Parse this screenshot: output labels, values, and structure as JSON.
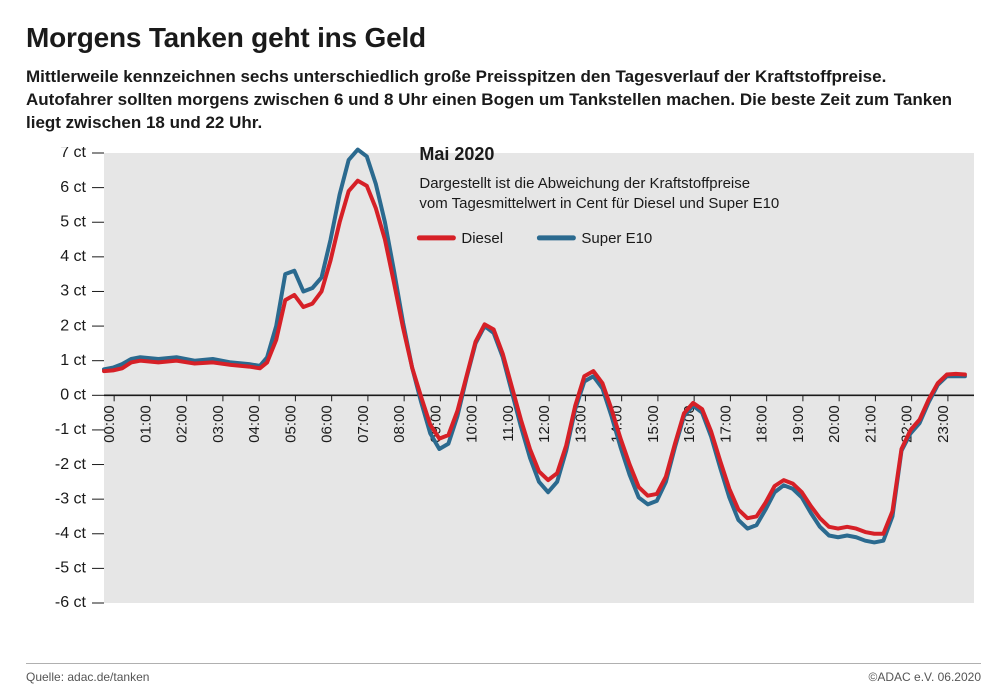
{
  "title": "Morgens Tanken geht ins Geld",
  "subtitle": "Mittlerweile kennzeichnen sechs unterschiedlich große Preisspitzen den Tagesverlauf der Kraftstoffpreise. Autofahrer sollten morgens zwischen 6 und 8 Uhr einen Bogen um Tankstellen machen. Die beste Zeit zum Tanken liegt zwischen 18 und 22 Uhr.",
  "footer_left": "Quelle: adac.de/tanken",
  "footer_right": "©ADAC e.V.  06.2020",
  "chart": {
    "type": "line",
    "plot_background": "#e6e6e6",
    "axis_color": "#1a1a1a",
    "ylim": [
      -6,
      7
    ],
    "yticks": [
      -6,
      -5,
      -4,
      -3,
      -2,
      -1,
      0,
      1,
      2,
      3,
      4,
      5,
      6,
      7
    ],
    "ytick_suffix": " ct",
    "xlim": [
      0,
      24
    ],
    "xticks_hours": [
      0,
      1,
      2,
      3,
      4,
      5,
      6,
      7,
      8,
      9,
      10,
      11,
      12,
      13,
      14,
      15,
      16,
      17,
      18,
      19,
      20,
      21,
      22,
      23
    ],
    "legend": {
      "title": "Mai 2020",
      "description_line1": "Dargestellt ist die Abweichung der Kraftstoffpreise",
      "description_line2": "vom Tagesmittelwert in Cent für Diesel und Super E10",
      "items": [
        {
          "name": "Diesel",
          "color": "#d62027"
        },
        {
          "name": "Super E10",
          "color": "#2b6a8f"
        }
      ]
    },
    "series": [
      {
        "name": "Super E10",
        "color": "#2b6a8f",
        "stroke_width": 4,
        "points": [
          [
            0.0,
            0.75
          ],
          [
            0.25,
            0.8
          ],
          [
            0.5,
            0.9
          ],
          [
            0.75,
            1.05
          ],
          [
            1.0,
            1.1
          ],
          [
            1.5,
            1.05
          ],
          [
            2.0,
            1.1
          ],
          [
            2.5,
            1.0
          ],
          [
            3.0,
            1.05
          ],
          [
            3.5,
            0.95
          ],
          [
            4.0,
            0.9
          ],
          [
            4.3,
            0.85
          ],
          [
            4.5,
            1.1
          ],
          [
            4.75,
            2.0
          ],
          [
            5.0,
            3.5
          ],
          [
            5.25,
            3.6
          ],
          [
            5.5,
            3.0
          ],
          [
            5.75,
            3.1
          ],
          [
            6.0,
            3.4
          ],
          [
            6.25,
            4.5
          ],
          [
            6.5,
            5.8
          ],
          [
            6.75,
            6.8
          ],
          [
            7.0,
            7.1
          ],
          [
            7.25,
            6.9
          ],
          [
            7.5,
            6.1
          ],
          [
            7.75,
            5.0
          ],
          [
            8.0,
            3.6
          ],
          [
            8.25,
            2.1
          ],
          [
            8.5,
            0.8
          ],
          [
            8.75,
            -0.2
          ],
          [
            9.0,
            -1.1
          ],
          [
            9.25,
            -1.55
          ],
          [
            9.5,
            -1.4
          ],
          [
            9.75,
            -0.6
          ],
          [
            10.0,
            0.5
          ],
          [
            10.25,
            1.5
          ],
          [
            10.5,
            2.0
          ],
          [
            10.75,
            1.8
          ],
          [
            11.0,
            1.1
          ],
          [
            11.25,
            0.1
          ],
          [
            11.5,
            -0.9
          ],
          [
            11.75,
            -1.8
          ],
          [
            12.0,
            -2.5
          ],
          [
            12.25,
            -2.8
          ],
          [
            12.5,
            -2.5
          ],
          [
            12.75,
            -1.6
          ],
          [
            13.0,
            -0.4
          ],
          [
            13.25,
            0.4
          ],
          [
            13.5,
            0.55
          ],
          [
            13.75,
            0.2
          ],
          [
            14.0,
            -0.6
          ],
          [
            14.25,
            -1.5
          ],
          [
            14.5,
            -2.3
          ],
          [
            14.75,
            -2.95
          ],
          [
            15.0,
            -3.15
          ],
          [
            15.25,
            -3.05
          ],
          [
            15.5,
            -2.5
          ],
          [
            15.75,
            -1.5
          ],
          [
            16.0,
            -0.6
          ],
          [
            16.25,
            -0.3
          ],
          [
            16.5,
            -0.5
          ],
          [
            16.75,
            -1.2
          ],
          [
            17.0,
            -2.1
          ],
          [
            17.25,
            -2.95
          ],
          [
            17.5,
            -3.6
          ],
          [
            17.75,
            -3.85
          ],
          [
            18.0,
            -3.75
          ],
          [
            18.25,
            -3.3
          ],
          [
            18.5,
            -2.8
          ],
          [
            18.75,
            -2.6
          ],
          [
            19.0,
            -2.7
          ],
          [
            19.25,
            -2.95
          ],
          [
            19.5,
            -3.4
          ],
          [
            19.75,
            -3.8
          ],
          [
            20.0,
            -4.05
          ],
          [
            20.25,
            -4.1
          ],
          [
            20.5,
            -4.05
          ],
          [
            20.75,
            -4.1
          ],
          [
            21.0,
            -4.2
          ],
          [
            21.25,
            -4.25
          ],
          [
            21.5,
            -4.2
          ],
          [
            21.75,
            -3.5
          ],
          [
            22.0,
            -1.6
          ],
          [
            22.25,
            -1.1
          ],
          [
            22.5,
            -0.8
          ],
          [
            22.75,
            -0.2
          ],
          [
            23.0,
            0.3
          ],
          [
            23.25,
            0.55
          ],
          [
            23.5,
            0.55
          ],
          [
            23.75,
            0.55
          ]
        ]
      },
      {
        "name": "Diesel",
        "color": "#d62027",
        "stroke_width": 4,
        "points": [
          [
            0.0,
            0.7
          ],
          [
            0.25,
            0.72
          ],
          [
            0.5,
            0.78
          ],
          [
            0.75,
            0.95
          ],
          [
            1.0,
            1.0
          ],
          [
            1.5,
            0.95
          ],
          [
            2.0,
            1.0
          ],
          [
            2.5,
            0.92
          ],
          [
            3.0,
            0.95
          ],
          [
            3.5,
            0.88
          ],
          [
            4.0,
            0.83
          ],
          [
            4.3,
            0.78
          ],
          [
            4.5,
            0.95
          ],
          [
            4.75,
            1.6
          ],
          [
            5.0,
            2.75
          ],
          [
            5.25,
            2.9
          ],
          [
            5.5,
            2.55
          ],
          [
            5.75,
            2.65
          ],
          [
            6.0,
            3.0
          ],
          [
            6.25,
            3.9
          ],
          [
            6.5,
            5.0
          ],
          [
            6.75,
            5.9
          ],
          [
            7.0,
            6.2
          ],
          [
            7.25,
            6.05
          ],
          [
            7.5,
            5.4
          ],
          [
            7.75,
            4.5
          ],
          [
            8.0,
            3.25
          ],
          [
            8.25,
            1.95
          ],
          [
            8.5,
            0.8
          ],
          [
            8.75,
            -0.05
          ],
          [
            9.0,
            -0.85
          ],
          [
            9.25,
            -1.25
          ],
          [
            9.5,
            -1.15
          ],
          [
            9.75,
            -0.45
          ],
          [
            10.0,
            0.55
          ],
          [
            10.25,
            1.55
          ],
          [
            10.5,
            2.05
          ],
          [
            10.75,
            1.9
          ],
          [
            11.0,
            1.2
          ],
          [
            11.25,
            0.25
          ],
          [
            11.5,
            -0.7
          ],
          [
            11.75,
            -1.55
          ],
          [
            12.0,
            -2.2
          ],
          [
            12.25,
            -2.45
          ],
          [
            12.5,
            -2.25
          ],
          [
            12.75,
            -1.45
          ],
          [
            13.0,
            -0.3
          ],
          [
            13.25,
            0.55
          ],
          [
            13.5,
            0.7
          ],
          [
            13.75,
            0.35
          ],
          [
            14.0,
            -0.4
          ],
          [
            14.25,
            -1.25
          ],
          [
            14.5,
            -2.0
          ],
          [
            14.75,
            -2.65
          ],
          [
            15.0,
            -2.9
          ],
          [
            15.25,
            -2.85
          ],
          [
            15.5,
            -2.35
          ],
          [
            15.75,
            -1.4
          ],
          [
            16.0,
            -0.52
          ],
          [
            16.25,
            -0.22
          ],
          [
            16.5,
            -0.4
          ],
          [
            16.75,
            -1.05
          ],
          [
            17.0,
            -1.9
          ],
          [
            17.25,
            -2.7
          ],
          [
            17.5,
            -3.3
          ],
          [
            17.75,
            -3.55
          ],
          [
            18.0,
            -3.5
          ],
          [
            18.25,
            -3.1
          ],
          [
            18.5,
            -2.62
          ],
          [
            18.75,
            -2.45
          ],
          [
            19.0,
            -2.55
          ],
          [
            19.25,
            -2.8
          ],
          [
            19.5,
            -3.2
          ],
          [
            19.75,
            -3.55
          ],
          [
            20.0,
            -3.8
          ],
          [
            20.25,
            -3.85
          ],
          [
            20.5,
            -3.8
          ],
          [
            20.75,
            -3.85
          ],
          [
            21.0,
            -3.95
          ],
          [
            21.25,
            -4.0
          ],
          [
            21.5,
            -4.0
          ],
          [
            21.75,
            -3.35
          ],
          [
            22.0,
            -1.55
          ],
          [
            22.25,
            -1.0
          ],
          [
            22.5,
            -0.7
          ],
          [
            22.75,
            -0.12
          ],
          [
            23.0,
            0.35
          ],
          [
            23.25,
            0.6
          ],
          [
            23.5,
            0.62
          ],
          [
            23.75,
            0.6
          ]
        ]
      }
    ]
  }
}
